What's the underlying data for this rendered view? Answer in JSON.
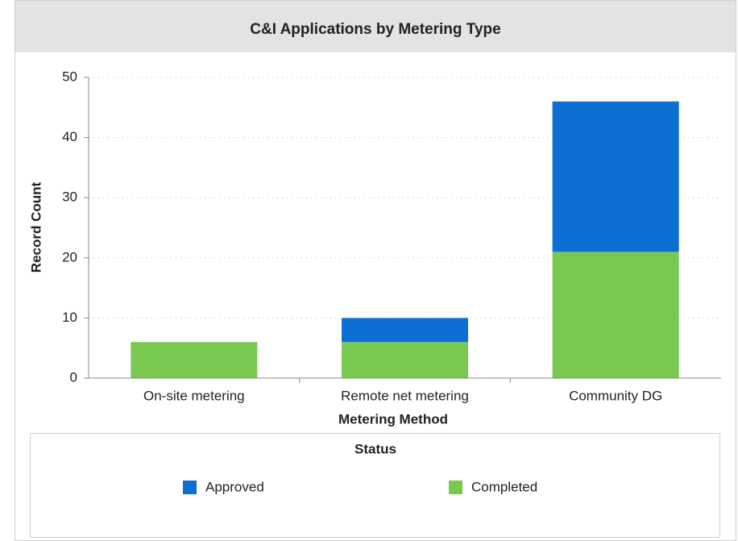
{
  "chart_data": {
    "type": "stacked_bar",
    "title": "C&I Applications by Metering Type",
    "categories": [
      "On-site metering",
      "Remote net metering",
      "Community DG"
    ],
    "series": [
      {
        "name": "Approved",
        "color": "#0b6fd4",
        "values": [
          0,
          4,
          25
        ]
      },
      {
        "name": "Completed",
        "color": "#79c850",
        "values": [
          6,
          6,
          21
        ]
      }
    ],
    "xlabel": "Metering Method",
    "ylabel": "Record Count",
    "ylim": [
      0,
      50
    ],
    "yticks": [
      0,
      10,
      20,
      30,
      40,
      50
    ],
    "grid": true,
    "legend_title": "Status",
    "legend_position": "bottom"
  }
}
